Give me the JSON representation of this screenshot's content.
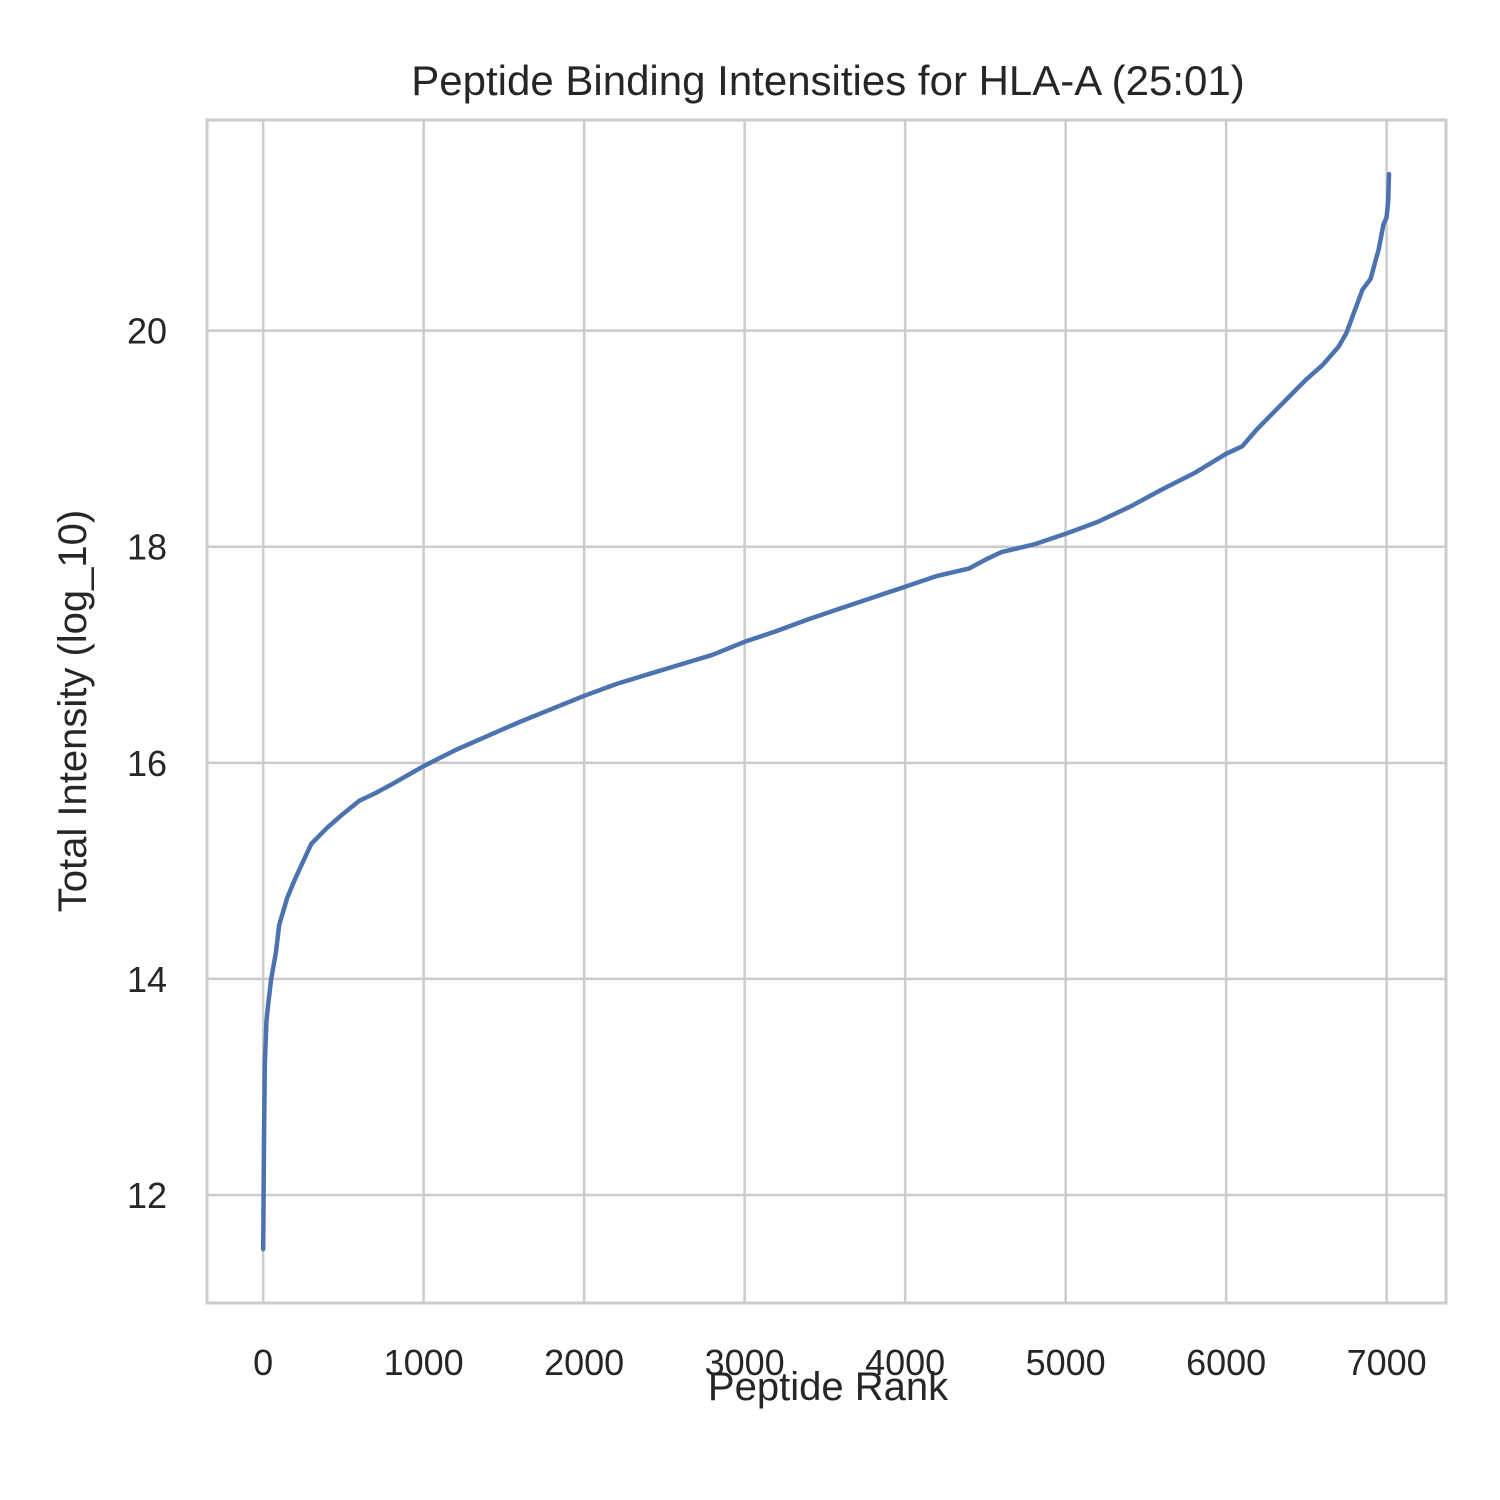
{
  "chart_data": {
    "type": "line",
    "title": "Peptide Binding Intensities for HLA-A (25:01)",
    "xlabel": "Peptide Rank",
    "ylabel": "Total Intensity (log_10)",
    "xlim": [
      -350,
      7370
    ],
    "ylim": [
      11.0,
      21.95
    ],
    "xticks": [
      0,
      1000,
      2000,
      3000,
      4000,
      5000,
      6000,
      7000
    ],
    "xtick_labels": [
      "0",
      "1000",
      "2000",
      "3000",
      "4000",
      "5000",
      "6000",
      "7000"
    ],
    "yticks": [
      12,
      14,
      16,
      18,
      20
    ],
    "ytick_labels": [
      "12",
      "14",
      "16",
      "18",
      "20"
    ],
    "grid": true,
    "legend": "none",
    "colors": {
      "series": "#4c72b0",
      "grid": "#cccccc",
      "text": "#262626"
    },
    "series": [
      {
        "x": [
          0,
          5,
          10,
          20,
          30,
          50,
          80,
          100,
          150,
          200,
          300,
          400,
          500,
          600,
          700,
          800,
          1000,
          1200,
          1400,
          1600,
          1800,
          2000,
          2200,
          2400,
          2600,
          2800,
          3000,
          3200,
          3400,
          3600,
          3800,
          4000,
          4200,
          4400,
          4500,
          4600,
          4800,
          5000,
          5200,
          5400,
          5600,
          5800,
          6000,
          6100,
          6200,
          6300,
          6400,
          6500,
          6600,
          6700,
          6750,
          6800,
          6850,
          6900,
          6950,
          6980,
          7000,
          7010,
          7015
        ],
        "y": [
          11.5,
          12.5,
          13.2,
          13.6,
          13.75,
          14.0,
          14.25,
          14.5,
          14.75,
          14.93,
          15.25,
          15.4,
          15.53,
          15.65,
          15.72,
          15.8,
          15.97,
          16.12,
          16.25,
          16.38,
          16.5,
          16.62,
          16.73,
          16.82,
          16.91,
          17.0,
          17.12,
          17.22,
          17.33,
          17.43,
          17.53,
          17.63,
          17.73,
          17.8,
          17.88,
          17.95,
          18.02,
          18.12,
          18.23,
          18.37,
          18.53,
          18.68,
          18.86,
          18.93,
          19.1,
          19.25,
          19.4,
          19.55,
          19.68,
          19.85,
          19.98,
          20.18,
          20.38,
          20.48,
          20.75,
          20.98,
          21.05,
          21.2,
          21.45
        ]
      }
    ]
  }
}
